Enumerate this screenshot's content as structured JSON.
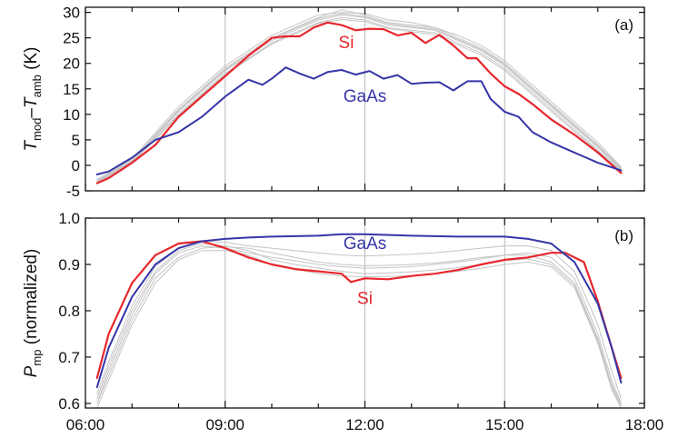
{
  "chart_data": [
    {
      "type": "line",
      "panel_label": "(a)",
      "ylabel": {
        "main": "T",
        "sub1": "mod",
        "dash": "–",
        "main2": "T",
        "sub2": "amb",
        "unit": " (K)"
      },
      "xlim": [
        6.0,
        18.0
      ],
      "ylim": [
        -5,
        31
      ],
      "yticks": [
        30,
        25,
        20,
        15,
        10,
        5,
        0,
        -5
      ],
      "ytick_labels": [
        "30",
        "25",
        "20",
        "15",
        "10",
        "5",
        "0",
        "-5"
      ],
      "xticks": [
        6,
        9,
        12,
        15,
        18
      ],
      "vlines": [
        9,
        12,
        15
      ],
      "grid": false,
      "series": [
        {
          "name": "Si",
          "color": "#e8262c",
          "width": 2.2,
          "label_pos": [
            11.6,
            23
          ],
          "x": [
            6.25,
            6.5,
            7.0,
            7.5,
            8.0,
            8.5,
            9.0,
            9.5,
            10.0,
            10.3,
            10.6,
            10.9,
            11.2,
            11.5,
            11.8,
            12.1,
            12.4,
            12.7,
            13.0,
            13.3,
            13.6,
            13.9,
            14.2,
            14.4,
            14.7,
            15.0,
            15.3,
            15.6,
            16.0,
            16.5,
            17.0,
            17.5
          ],
          "y": [
            -3.5,
            -2.5,
            0.5,
            4,
            9.5,
            13.5,
            17.5,
            21.5,
            25,
            25.3,
            25.3,
            27,
            28,
            27.5,
            26.5,
            26.8,
            26.7,
            25.5,
            26,
            24,
            25.6,
            23.5,
            21,
            21,
            18,
            15.5,
            14,
            12,
            9,
            6,
            2.5,
            -1.5
          ]
        },
        {
          "name": "GaAs",
          "color": "#3535a8",
          "width": 2.0,
          "label_pos": [
            12.0,
            12.5
          ],
          "x": [
            6.25,
            6.5,
            7.0,
            7.5,
            8.0,
            8.5,
            9.0,
            9.5,
            9.8,
            10.0,
            10.3,
            10.6,
            10.9,
            11.2,
            11.5,
            11.8,
            12.1,
            12.4,
            12.7,
            13.0,
            13.3,
            13.6,
            13.9,
            14.2,
            14.5,
            14.7,
            15.0,
            15.3,
            15.6,
            16.0,
            16.5,
            17.0,
            17.5
          ],
          "y": [
            -1.8,
            -1.2,
            1.5,
            5,
            6.5,
            9.5,
            13.5,
            16.8,
            15.8,
            17,
            19.2,
            18,
            17,
            18.3,
            18.7,
            17.8,
            18.5,
            17,
            17.7,
            16,
            16.2,
            16.3,
            14.7,
            16.5,
            16.5,
            13,
            10.5,
            9.5,
            6.5,
            4.5,
            2.5,
            0.5,
            -1
          ]
        },
        {
          "name": "",
          "color": "#c4c4c4",
          "width": 1,
          "x": [
            6.25,
            7.0,
            8.0,
            9.0,
            10.0,
            10.5,
            11.0,
            11.5,
            12.0,
            12.5,
            13.0,
            13.5,
            14.0,
            14.5,
            15.0,
            15.5,
            16.0,
            16.5,
            17.0,
            17.5
          ],
          "y": [
            -3,
            1,
            11,
            19,
            25,
            27,
            29,
            30.5,
            29.5,
            28,
            27.5,
            27,
            25,
            23,
            20,
            16,
            12,
            8,
            4,
            -0.5
          ]
        },
        {
          "name": "",
          "color": "#c4c4c4",
          "width": 1,
          "x": [
            6.25,
            7.0,
            8.0,
            9.0,
            10.0,
            10.5,
            11.0,
            11.5,
            12.0,
            12.5,
            13.0,
            13.5,
            14.0,
            14.5,
            15.0,
            15.5,
            16.0,
            16.5,
            17.0,
            17.5
          ],
          "y": [
            -3.2,
            0.8,
            10.5,
            18.5,
            24.5,
            26.5,
            28.5,
            29.5,
            29,
            27.5,
            27,
            26.5,
            24.5,
            22.5,
            19.5,
            15.5,
            11.5,
            7.5,
            3.5,
            -0.8
          ]
        },
        {
          "name": "",
          "color": "#c4c4c4",
          "width": 1,
          "x": [
            6.25,
            7.0,
            8.0,
            9.0,
            10.0,
            10.5,
            11.0,
            11.5,
            12.0,
            12.5,
            13.0,
            13.5,
            14.0,
            14.5,
            15.0,
            15.5,
            16.0,
            16.5,
            17.0,
            17.5
          ],
          "y": [
            -3.4,
            0.6,
            10,
            18,
            24,
            26,
            28,
            29,
            28.5,
            27,
            26.5,
            26,
            24,
            22,
            19,
            15,
            11,
            7,
            3,
            -1
          ]
        },
        {
          "name": "",
          "color": "#c4c4c4",
          "width": 1,
          "x": [
            6.25,
            7.0,
            8.0,
            9.0,
            10.0,
            10.5,
            11.0,
            11.5,
            12.0,
            12.5,
            13.0,
            13.5,
            14.0,
            14.5,
            15.0,
            15.5,
            16.0,
            16.5,
            17.0,
            17.5
          ],
          "y": [
            -2.8,
            1.3,
            11.5,
            19.5,
            25.5,
            27.5,
            29.5,
            30,
            29.8,
            28.5,
            28,
            27,
            25.5,
            23.5,
            20.5,
            16.5,
            12.5,
            8.5,
            4.5,
            -0.3
          ]
        },
        {
          "name": "",
          "color": "#c4c4c4",
          "width": 1,
          "x": [
            6.25,
            7.0,
            8.0,
            9.0,
            10.0,
            10.5,
            11.0,
            11.5,
            12.0,
            12.5,
            13.0,
            13.5,
            14.0,
            14.5,
            15.0,
            15.5,
            16.0,
            16.5,
            17.0,
            17.5
          ],
          "y": [
            -3.3,
            0.9,
            10.8,
            18.8,
            24.8,
            26.8,
            28.8,
            29.8,
            29.2,
            27.8,
            27.2,
            26.7,
            24.7,
            22.7,
            19.8,
            15.8,
            11.8,
            7.8,
            3.8,
            -0.6
          ]
        },
        {
          "name": "",
          "color": "#c4c4c4",
          "width": 1,
          "x": [
            6.25,
            7.0,
            8.0,
            9.0,
            10.0,
            10.5,
            11.0,
            11.5,
            12.0,
            12.5,
            13.0,
            13.5,
            14.0,
            14.5,
            15.0,
            15.5,
            16.0,
            16.5,
            17.0,
            17.5
          ],
          "y": [
            -3.6,
            0.4,
            9.8,
            17.8,
            23.8,
            25.8,
            27.8,
            28.6,
            28.2,
            26.8,
            26.2,
            25.6,
            23.6,
            21.6,
            18.6,
            14.6,
            10.6,
            6.6,
            2.8,
            -1.2
          ]
        }
      ]
    },
    {
      "type": "line",
      "panel_label": "(b)",
      "ylabel": {
        "main": "P",
        "sub1": "mp",
        "unit": " (normalized)"
      },
      "xlim": [
        6.0,
        18.0
      ],
      "ylim": [
        0.59,
        1.0
      ],
      "yticks": [
        1.0,
        0.9,
        0.8,
        0.7,
        0.6
      ],
      "ytick_labels": [
        "1.0",
        "0.9",
        "0.8",
        "0.7",
        "0.6"
      ],
      "xticks": [
        6,
        9,
        12,
        15,
        18
      ],
      "xtick_labels": [
        "06:00",
        "09:00",
        "12:00",
        "15:00",
        "18:00"
      ],
      "vlines": [
        9,
        12,
        15
      ],
      "grid": false,
      "series": [
        {
          "name": "Si",
          "color": "#e8262c",
          "width": 2.2,
          "label_pos": [
            12.0,
            0.815
          ],
          "x": [
            6.25,
            6.5,
            7.0,
            7.5,
            8.0,
            8.5,
            9.0,
            9.5,
            10.0,
            10.5,
            11.0,
            11.5,
            11.7,
            12.0,
            12.5,
            13.0,
            13.5,
            14.0,
            14.5,
            15.0,
            15.5,
            16.0,
            16.3,
            16.7,
            17.0,
            17.3,
            17.5
          ],
          "y": [
            0.655,
            0.75,
            0.86,
            0.92,
            0.945,
            0.95,
            0.935,
            0.915,
            0.9,
            0.89,
            0.885,
            0.88,
            0.862,
            0.87,
            0.868,
            0.875,
            0.88,
            0.888,
            0.9,
            0.91,
            0.915,
            0.925,
            0.925,
            0.905,
            0.82,
            0.72,
            0.655
          ]
        },
        {
          "name": "GaAs",
          "color": "#3535a8",
          "width": 2.0,
          "label_pos": [
            12.0,
            0.933
          ],
          "x": [
            6.25,
            6.5,
            7.0,
            7.5,
            8.0,
            8.5,
            9.0,
            9.5,
            10.0,
            11.0,
            11.5,
            12.0,
            13.0,
            14.0,
            15.0,
            15.5,
            16.0,
            16.5,
            17.0,
            17.3,
            17.5
          ],
          "y": [
            0.635,
            0.72,
            0.83,
            0.9,
            0.935,
            0.95,
            0.955,
            0.958,
            0.96,
            0.962,
            0.965,
            0.965,
            0.962,
            0.96,
            0.96,
            0.955,
            0.945,
            0.905,
            0.815,
            0.72,
            0.645
          ]
        },
        {
          "name": "",
          "color": "#c4c4c4",
          "width": 1,
          "x": [
            6.25,
            6.5,
            7.0,
            7.5,
            8.0,
            8.5,
            9.0,
            9.5,
            10.0,
            10.5,
            11.0,
            11.5,
            12.0,
            12.5,
            13.0,
            13.5,
            14.0,
            14.5,
            15.0,
            15.5,
            16.0,
            16.5,
            17.0,
            17.3,
            17.5
          ],
          "y": [
            0.6,
            0.67,
            0.79,
            0.88,
            0.925,
            0.94,
            0.935,
            0.925,
            0.915,
            0.908,
            0.9,
            0.895,
            0.892,
            0.893,
            0.895,
            0.9,
            0.905,
            0.912,
            0.92,
            0.925,
            0.915,
            0.87,
            0.75,
            0.65,
            0.6
          ]
        },
        {
          "name": "",
          "color": "#c4c4c4",
          "width": 1,
          "x": [
            6.25,
            6.5,
            7.0,
            7.5,
            8.0,
            8.5,
            9.0,
            9.5,
            10.0,
            10.5,
            11.0,
            11.5,
            12.0,
            12.5,
            13.0,
            13.5,
            14.0,
            14.5,
            15.0,
            15.5,
            16.0,
            16.5,
            17.0,
            17.3,
            17.5
          ],
          "y": [
            0.59,
            0.65,
            0.77,
            0.86,
            0.91,
            0.93,
            0.93,
            0.92,
            0.9,
            0.89,
            0.88,
            0.875,
            0.873,
            0.874,
            0.876,
            0.88,
            0.885,
            0.892,
            0.9,
            0.905,
            0.895,
            0.85,
            0.73,
            0.63,
            0.59
          ]
        },
        {
          "name": "",
          "color": "#c4c4c4",
          "width": 1,
          "x": [
            6.25,
            6.5,
            7.0,
            7.5,
            8.0,
            8.5,
            9.0,
            9.5,
            10.0,
            10.5,
            11.0,
            11.5,
            12.0,
            12.5,
            13.0,
            13.5,
            14.0,
            14.5,
            15.0,
            15.5,
            16.0,
            16.5,
            17.0,
            17.3,
            17.5
          ],
          "y": [
            0.62,
            0.69,
            0.81,
            0.895,
            0.935,
            0.95,
            0.948,
            0.94,
            0.935,
            0.93,
            0.925,
            0.92,
            0.918,
            0.92,
            0.922,
            0.925,
            0.93,
            0.935,
            0.94,
            0.94,
            0.93,
            0.885,
            0.77,
            0.67,
            0.61
          ]
        },
        {
          "name": "",
          "color": "#c4c4c4",
          "width": 1,
          "x": [
            6.25,
            6.5,
            7.0,
            7.5,
            8.0,
            8.5,
            9.0,
            9.5,
            10.0,
            10.5,
            11.0,
            11.5,
            12.0,
            12.5,
            13.0,
            13.5,
            14.0,
            14.5,
            15.0,
            15.5,
            16.0,
            16.5,
            17.0,
            17.3,
            17.5
          ],
          "y": [
            0.6,
            0.66,
            0.78,
            0.87,
            0.915,
            0.935,
            0.938,
            0.935,
            0.925,
            0.915,
            0.905,
            0.9,
            0.897,
            0.898,
            0.9,
            0.903,
            0.908,
            0.915,
            0.92,
            0.92,
            0.905,
            0.86,
            0.74,
            0.64,
            0.6
          ]
        },
        {
          "name": "",
          "color": "#c4c4c4",
          "width": 1,
          "x": [
            6.25,
            6.5,
            7.0,
            7.5,
            8.0,
            8.5,
            9.0,
            9.5,
            10.0,
            10.5,
            11.0,
            11.5,
            12.0,
            12.5,
            13.0,
            13.5,
            14.0,
            14.5,
            15.0,
            15.5,
            16.0,
            16.5,
            17.0,
            17.3,
            17.5
          ],
          "y": [
            0.61,
            0.68,
            0.8,
            0.885,
            0.93,
            0.945,
            0.94,
            0.93,
            0.91,
            0.9,
            0.892,
            0.885,
            0.88,
            0.882,
            0.884,
            0.888,
            0.893,
            0.9,
            0.908,
            0.912,
            0.9,
            0.855,
            0.735,
            0.635,
            0.595
          ]
        }
      ]
    }
  ]
}
